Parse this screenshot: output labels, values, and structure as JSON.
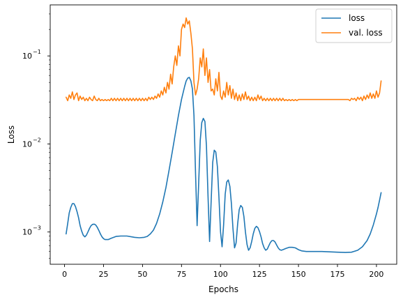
{
  "chart_data": {
    "type": "line",
    "title": "",
    "xlabel": "Epochs",
    "ylabel": "Loss",
    "xlim": [
      -9.2,
      213
    ],
    "ylim": [
      0.00043,
      0.38
    ],
    "yscale": "log",
    "xticks": [
      0,
      25,
      50,
      75,
      100,
      125,
      150,
      175,
      200
    ],
    "yticks": [
      {
        "value": 0.001,
        "base": "10",
        "exp": "−3"
      },
      {
        "value": 0.01,
        "base": "10",
        "exp": "−2"
      },
      {
        "value": 0.1,
        "base": "10",
        "exp": "−1"
      }
    ],
    "grid": false,
    "legend_position": "top-right",
    "series": [
      {
        "name": "loss",
        "color": "#1f77b4",
        "points": [
          [
            1,
            0.00095
          ],
          [
            2,
            0.00125
          ],
          [
            3,
            0.00165
          ],
          [
            4,
            0.0019
          ],
          [
            5,
            0.0021
          ],
          [
            6,
            0.0021
          ],
          [
            7,
            0.00195
          ],
          [
            8,
            0.0017
          ],
          [
            9,
            0.00145
          ],
          [
            10,
            0.00118
          ],
          [
            11,
            0.00102
          ],
          [
            12,
            0.00092
          ],
          [
            13,
            0.00088
          ],
          [
            14,
            0.00092
          ],
          [
            15,
            0.001
          ],
          [
            16,
            0.0011
          ],
          [
            17,
            0.00118
          ],
          [
            18,
            0.00122
          ],
          [
            19,
            0.00123
          ],
          [
            20,
            0.0012
          ],
          [
            21,
            0.00113
          ],
          [
            22,
            0.00104
          ],
          [
            23,
            0.00095
          ],
          [
            24,
            0.00088
          ],
          [
            25,
            0.00084
          ],
          [
            26,
            0.00082
          ],
          [
            28,
            0.00082
          ],
          [
            30,
            0.00085
          ],
          [
            33,
            0.00089
          ],
          [
            36,
            0.0009
          ],
          [
            40,
            0.0009
          ],
          [
            45,
            0.00087
          ],
          [
            48,
            0.00086
          ],
          [
            51,
            0.00087
          ],
          [
            53,
            0.00089
          ],
          [
            55,
            0.00095
          ],
          [
            57,
            0.00105
          ],
          [
            59,
            0.00125
          ],
          [
            61,
            0.0016
          ],
          [
            63,
            0.0022
          ],
          [
            65,
            0.0032
          ],
          [
            67,
            0.005
          ],
          [
            69,
            0.008
          ],
          [
            71,
            0.013
          ],
          [
            73,
            0.021
          ],
          [
            75,
            0.032
          ],
          [
            77,
            0.045
          ],
          [
            78,
            0.052
          ],
          [
            79,
            0.056
          ],
          [
            80,
            0.057
          ],
          [
            81,
            0.052
          ],
          [
            82,
            0.042
          ],
          [
            83,
            0.021
          ],
          [
            84,
            0.0045
          ],
          [
            85,
            0.00118
          ],
          [
            86,
            0.0035
          ],
          [
            87,
            0.011
          ],
          [
            88,
            0.0175
          ],
          [
            89,
            0.0195
          ],
          [
            90,
            0.018
          ],
          [
            91,
            0.0095
          ],
          [
            92,
            0.0025
          ],
          [
            93,
            0.00078
          ],
          [
            94,
            0.0022
          ],
          [
            95,
            0.0062
          ],
          [
            96,
            0.0085
          ],
          [
            97,
            0.0081
          ],
          [
            98,
            0.0055
          ],
          [
            99,
            0.0025
          ],
          [
            100,
            0.001
          ],
          [
            101,
            0.00068
          ],
          [
            102,
            0.0012
          ],
          [
            103,
            0.0027
          ],
          [
            104,
            0.0037
          ],
          [
            105,
            0.0039
          ],
          [
            106,
            0.0033
          ],
          [
            107,
            0.0021
          ],
          [
            108,
            0.0011
          ],
          [
            109,
            0.00066
          ],
          [
            110,
            0.00075
          ],
          [
            111,
            0.00125
          ],
          [
            112,
            0.0018
          ],
          [
            113,
            0.002
          ],
          [
            114,
            0.0019
          ],
          [
            115,
            0.0015
          ],
          [
            116,
            0.001
          ],
          [
            117,
            0.00072
          ],
          [
            118,
            0.00062
          ],
          [
            119,
            0.00066
          ],
          [
            120,
            0.00078
          ],
          [
            121,
            0.00095
          ],
          [
            122,
            0.0011
          ],
          [
            123,
            0.00116
          ],
          [
            124,
            0.00112
          ],
          [
            125,
            0.00101
          ],
          [
            126,
            0.00088
          ],
          [
            127,
            0.00074
          ],
          [
            128,
            0.00066
          ],
          [
            129,
            0.00062
          ],
          [
            130,
            0.00064
          ],
          [
            131,
            0.0007
          ],
          [
            132,
            0.00076
          ],
          [
            133,
            0.0008
          ],
          [
            134,
            0.0008
          ],
          [
            135,
            0.00077
          ],
          [
            136,
            0.00071
          ],
          [
            137,
            0.00066
          ],
          [
            138,
            0.00063
          ],
          [
            139,
            0.00062
          ],
          [
            140,
            0.00063
          ],
          [
            142,
            0.00065
          ],
          [
            144,
            0.00067
          ],
          [
            146,
            0.00067
          ],
          [
            148,
            0.00066
          ],
          [
            150,
            0.00063
          ],
          [
            152,
            0.00061
          ],
          [
            155,
            0.0006
          ],
          [
            160,
            0.0006
          ],
          [
            165,
            0.0006
          ],
          [
            170,
            0.000595
          ],
          [
            175,
            0.00059
          ],
          [
            180,
            0.000585
          ],
          [
            184,
            0.00059
          ],
          [
            188,
            0.00062
          ],
          [
            191,
            0.00068
          ],
          [
            194,
            0.0008
          ],
          [
            196,
            0.00095
          ],
          [
            198,
            0.0012
          ],
          [
            200,
            0.0016
          ],
          [
            201,
            0.0019
          ],
          [
            202,
            0.0023
          ],
          [
            203,
            0.0028
          ]
        ]
      },
      {
        "name": "val. loss",
        "color": "#ff7f0e",
        "points": [
          [
            1,
            0.034
          ],
          [
            2,
            0.031
          ],
          [
            3,
            0.036
          ],
          [
            4,
            0.033
          ],
          [
            5,
            0.039
          ],
          [
            6,
            0.032
          ],
          [
            7,
            0.036
          ],
          [
            8,
            0.038
          ],
          [
            9,
            0.031
          ],
          [
            10,
            0.035
          ],
          [
            11,
            0.032
          ],
          [
            12,
            0.034
          ],
          [
            13,
            0.031
          ],
          [
            14,
            0.033
          ],
          [
            15,
            0.031
          ],
          [
            16,
            0.034
          ],
          [
            17,
            0.032
          ],
          [
            18,
            0.031
          ],
          [
            19,
            0.035
          ],
          [
            20,
            0.032
          ],
          [
            21,
            0.031
          ],
          [
            22,
            0.033
          ],
          [
            23,
            0.031
          ],
          [
            24,
            0.032
          ],
          [
            25,
            0.031
          ],
          [
            26,
            0.032
          ],
          [
            27,
            0.031
          ],
          [
            28,
            0.032
          ],
          [
            29,
            0.031
          ],
          [
            30,
            0.033
          ],
          [
            31,
            0.031
          ],
          [
            32,
            0.033
          ],
          [
            33,
            0.031
          ],
          [
            34,
            0.033
          ],
          [
            35,
            0.031
          ],
          [
            36,
            0.033
          ],
          [
            37,
            0.031
          ],
          [
            38,
            0.033
          ],
          [
            39,
            0.031
          ],
          [
            40,
            0.033
          ],
          [
            41,
            0.031
          ],
          [
            42,
            0.033
          ],
          [
            43,
            0.031
          ],
          [
            44,
            0.033
          ],
          [
            45,
            0.031
          ],
          [
            46,
            0.033
          ],
          [
            47,
            0.031
          ],
          [
            48,
            0.033
          ],
          [
            49,
            0.031
          ],
          [
            50,
            0.033
          ],
          [
            51,
            0.031
          ],
          [
            52,
            0.033
          ],
          [
            53,
            0.031
          ],
          [
            54,
            0.034
          ],
          [
            55,
            0.032
          ],
          [
            56,
            0.034
          ],
          [
            57,
            0.032
          ],
          [
            58,
            0.035
          ],
          [
            59,
            0.033
          ],
          [
            60,
            0.037
          ],
          [
            61,
            0.034
          ],
          [
            62,
            0.04
          ],
          [
            63,
            0.036
          ],
          [
            64,
            0.044
          ],
          [
            65,
            0.038
          ],
          [
            66,
            0.05
          ],
          [
            67,
            0.042
          ],
          [
            68,
            0.062
          ],
          [
            69,
            0.048
          ],
          [
            70,
            0.075
          ],
          [
            71,
            0.1
          ],
          [
            72,
            0.078
          ],
          [
            73,
            0.13
          ],
          [
            74,
            0.1
          ],
          [
            75,
            0.2
          ],
          [
            76,
            0.23
          ],
          [
            77,
            0.21
          ],
          [
            78,
            0.27
          ],
          [
            79,
            0.23
          ],
          [
            80,
            0.25
          ],
          [
            81,
            0.18
          ],
          [
            82,
            0.12
          ],
          [
            83,
            0.05
          ],
          [
            84,
            0.036
          ],
          [
            85,
            0.042
          ],
          [
            86,
            0.055
          ],
          [
            87,
            0.095
          ],
          [
            88,
            0.075
          ],
          [
            89,
            0.12
          ],
          [
            90,
            0.06
          ],
          [
            91,
            0.095
          ],
          [
            92,
            0.05
          ],
          [
            93,
            0.07
          ],
          [
            94,
            0.04
          ],
          [
            95,
            0.042
          ],
          [
            96,
            0.036
          ],
          [
            97,
            0.055
          ],
          [
            98,
            0.04
          ],
          [
            99,
            0.065
          ],
          [
            100,
            0.035
          ],
          [
            101,
            0.032
          ],
          [
            102,
            0.04
          ],
          [
            103,
            0.034
          ],
          [
            104,
            0.05
          ],
          [
            105,
            0.036
          ],
          [
            106,
            0.046
          ],
          [
            107,
            0.033
          ],
          [
            108,
            0.042
          ],
          [
            109,
            0.032
          ],
          [
            110,
            0.038
          ],
          [
            111,
            0.031
          ],
          [
            112,
            0.036
          ],
          [
            113,
            0.031
          ],
          [
            114,
            0.037
          ],
          [
            115,
            0.032
          ],
          [
            116,
            0.039
          ],
          [
            117,
            0.032
          ],
          [
            118,
            0.035
          ],
          [
            119,
            0.031
          ],
          [
            120,
            0.034
          ],
          [
            121,
            0.031
          ],
          [
            122,
            0.034
          ],
          [
            123,
            0.031
          ],
          [
            124,
            0.036
          ],
          [
            125,
            0.032
          ],
          [
            126,
            0.035
          ],
          [
            127,
            0.031
          ],
          [
            128,
            0.033
          ],
          [
            129,
            0.031
          ],
          [
            130,
            0.033
          ],
          [
            131,
            0.031
          ],
          [
            132,
            0.033
          ],
          [
            133,
            0.031
          ],
          [
            134,
            0.033
          ],
          [
            135,
            0.031
          ],
          [
            136,
            0.033
          ],
          [
            137,
            0.031
          ],
          [
            138,
            0.033
          ],
          [
            139,
            0.031
          ],
          [
            140,
            0.033
          ],
          [
            141,
            0.031
          ],
          [
            142,
            0.032
          ],
          [
            143,
            0.031
          ],
          [
            144,
            0.032
          ],
          [
            145,
            0.031
          ],
          [
            146,
            0.032
          ],
          [
            147,
            0.031
          ],
          [
            148,
            0.032
          ],
          [
            149,
            0.031
          ],
          [
            150,
            0.032
          ],
          [
            152,
            0.032
          ],
          [
            155,
            0.032
          ],
          [
            160,
            0.032
          ],
          [
            165,
            0.032
          ],
          [
            170,
            0.032
          ],
          [
            175,
            0.032
          ],
          [
            180,
            0.032
          ],
          [
            182,
            0.032
          ],
          [
            183,
            0.031
          ],
          [
            184,
            0.033
          ],
          [
            185,
            0.032
          ],
          [
            186,
            0.033
          ],
          [
            187,
            0.031
          ],
          [
            188,
            0.034
          ],
          [
            189,
            0.032
          ],
          [
            190,
            0.034
          ],
          [
            191,
            0.031
          ],
          [
            192,
            0.035
          ],
          [
            193,
            0.032
          ],
          [
            194,
            0.036
          ],
          [
            195,
            0.033
          ],
          [
            196,
            0.038
          ],
          [
            197,
            0.033
          ],
          [
            198,
            0.037
          ],
          [
            199,
            0.033
          ],
          [
            200,
            0.04
          ],
          [
            201,
            0.034
          ],
          [
            202,
            0.038
          ],
          [
            203,
            0.052
          ]
        ]
      }
    ]
  }
}
